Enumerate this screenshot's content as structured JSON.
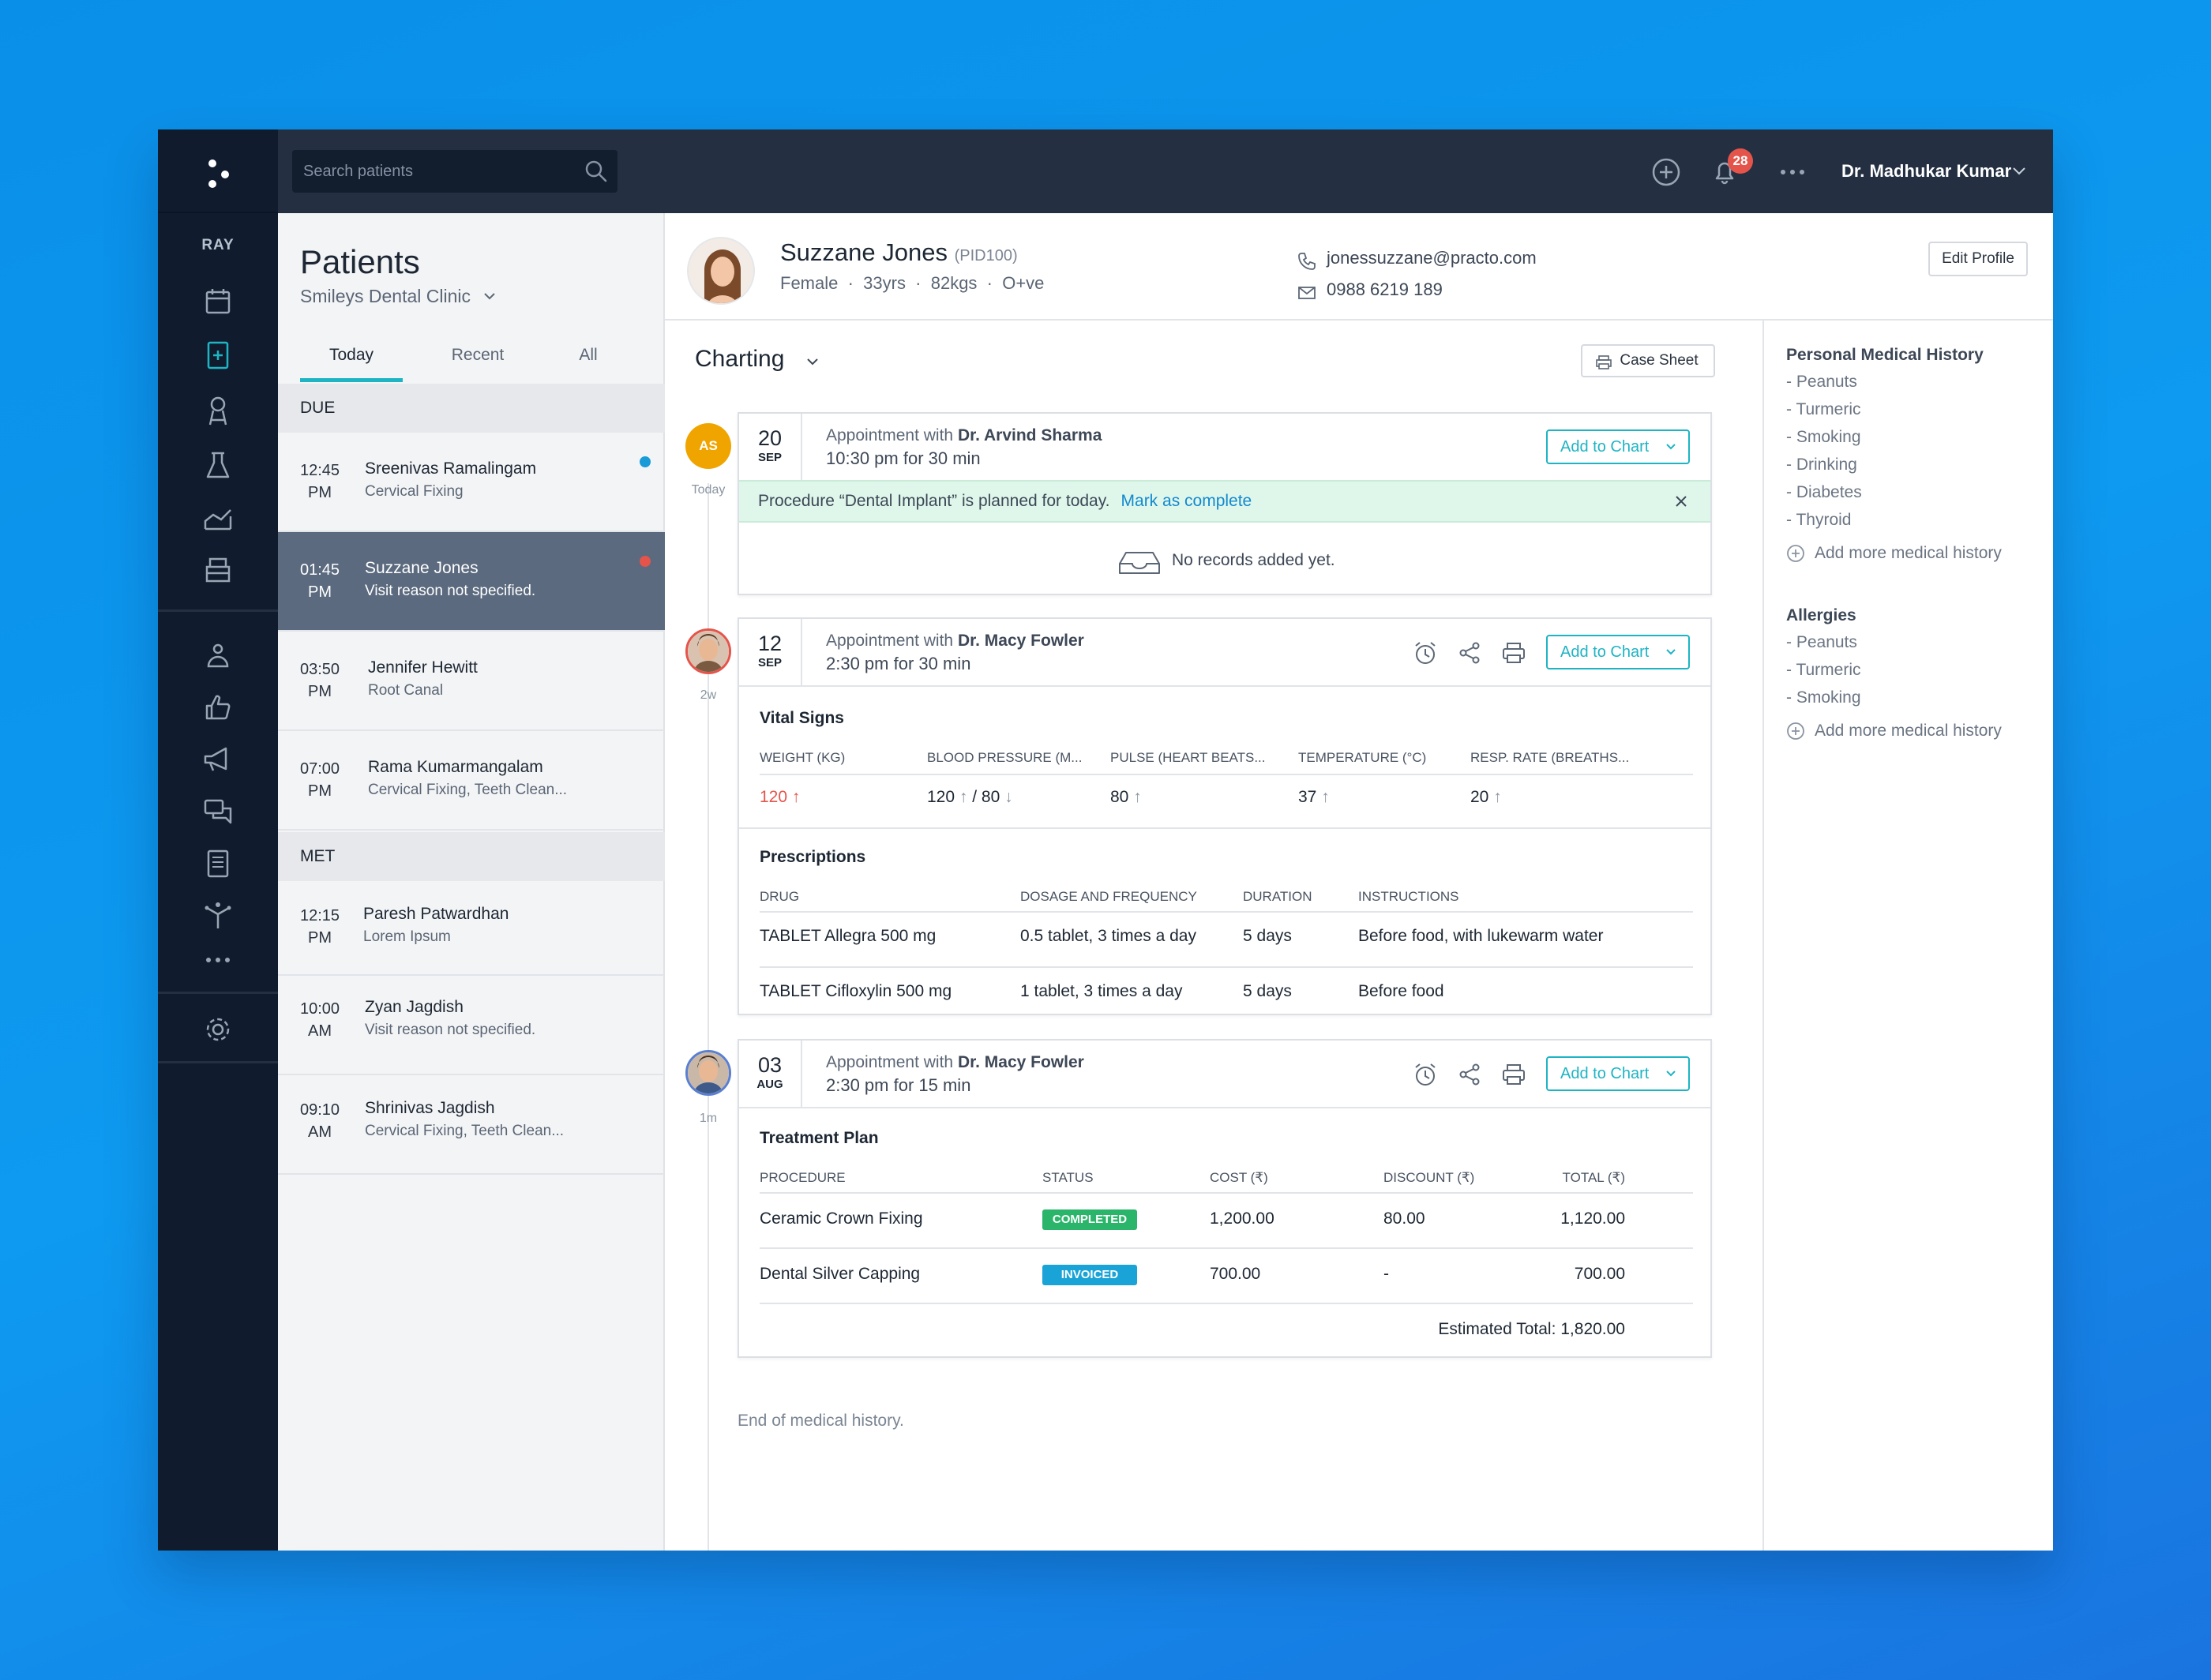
{
  "app": {
    "name": "RAY"
  },
  "search": {
    "placeholder": "Search patients"
  },
  "topbar": {
    "notification_count": "28",
    "user_name": "Dr. Madhukar Kumar"
  },
  "patients_panel": {
    "title": "Patients",
    "clinic": "Smileys Dental Clinic",
    "tabs": [
      {
        "label": "Today"
      },
      {
        "label": "Recent"
      },
      {
        "label": "All"
      }
    ],
    "due_label": "DUE",
    "met_label": "MET",
    "due": [
      {
        "time": "12:45",
        "ampm": "PM",
        "name": "Sreenivas Ramalingam",
        "reason": "Cervical Fixing"
      },
      {
        "time": "01:45",
        "ampm": "PM",
        "name": "Suzzane Jones",
        "reason": "Visit reason not specified."
      },
      {
        "time": "03:50",
        "ampm": "PM",
        "name": "Jennifer Hewitt",
        "reason": "Root Canal"
      },
      {
        "time": "07:00",
        "ampm": "PM",
        "name": "Rama Kumarmangalam",
        "reason": "Cervical Fixing, Teeth Clean..."
      }
    ],
    "met": [
      {
        "time": "12:15",
        "ampm": "PM",
        "name": "Paresh Patwardhan",
        "reason": "Lorem Ipsum"
      },
      {
        "time": "10:00",
        "ampm": "AM",
        "name": "Zyan Jagdish",
        "reason": "Visit reason not specified."
      },
      {
        "time": "09:10",
        "ampm": "AM",
        "name": "Shrinivas Jagdish",
        "reason": "Cervical Fixing, Teeth Clean..."
      }
    ]
  },
  "patient": {
    "name": "Suzzane Jones",
    "pid": "(PID100)",
    "gender": "Female",
    "age": "33yrs",
    "weight": "82kgs",
    "blood": "O+ve",
    "email": "jonessuzzane@practo.com",
    "phone": "0988 6219 189",
    "edit_label": "Edit Profile"
  },
  "charting": {
    "title": "Charting",
    "case_sheet_label": "Case Sheet",
    "add_to_chart_label": "Add to Chart",
    "appointment_prefix": "Appointment with",
    "end_label": "End of medical history.",
    "timeline": [
      {
        "initials": "AS",
        "label": "Today"
      },
      {
        "label": "2w"
      },
      {
        "label": "1m"
      }
    ],
    "appt1": {
      "day": "20",
      "month": "SEP",
      "doctor": "Dr. Arvind Sharma",
      "when": "10:30 pm for 30 min",
      "alert": "Procedure “Dental Implant” is planned for today.",
      "alert_link": "Mark as complete",
      "empty": "No records added yet."
    },
    "appt2": {
      "day": "12",
      "month": "SEP",
      "doctor": "Dr. Macy Fowler",
      "when": "2:30 pm for 30 min",
      "vitals_title": "Vital Signs",
      "vitals_headers": [
        "WEIGHT (KG)",
        "BLOOD PRESSURE (M...",
        "PULSE (HEART BEATS...",
        "TEMPERATURE (°C)",
        "RESP. RATE (BREATHS..."
      ],
      "vitals_values": {
        "weight": "120",
        "bp_sys": "120",
        "bp_sep": "/",
        "bp_dia": "80",
        "pulse": "80",
        "temp": "37",
        "resp": "20"
      },
      "rx_title": "Prescriptions",
      "rx_headers": [
        "DRUG",
        "DOSAGE AND FREQUENCY",
        "DURATION",
        "INSTRUCTIONS"
      ],
      "rx_rows": [
        {
          "drug": "TABLET Allegra 500 mg",
          "dosage": "0.5 tablet, 3 times a day",
          "duration": "5 days",
          "instructions": "Before food, with lukewarm water"
        },
        {
          "drug": "TABLET Cifloxylin 500 mg",
          "dosage": "1 tablet, 3 times a day",
          "duration": "5 days",
          "instructions": "Before food"
        }
      ]
    },
    "appt3": {
      "day": "03",
      "month": "AUG",
      "doctor": "Dr. Macy Fowler",
      "when": "2:30 pm for 15 min",
      "plan_title": "Treatment Plan",
      "plan_headers": [
        "PROCEDURE",
        "STATUS",
        "COST (₹)",
        "DISCOUNT (₹)",
        "TOTAL (₹)"
      ],
      "plan_rows": [
        {
          "procedure": "Ceramic Crown Fixing",
          "status": "COMPLETED",
          "status_color": "#2bb56a",
          "cost": "1,200.00",
          "discount": "80.00",
          "total": "1,120.00"
        },
        {
          "procedure": "Dental Silver Capping",
          "status": "INVOICED",
          "status_color": "#1aa3d6",
          "cost": "700.00",
          "discount": "-",
          "total": "700.00"
        }
      ],
      "estimated_total": "Estimated Total: 1,820.00"
    }
  },
  "sidebar": {
    "history_title": "Personal Medical History",
    "history_items": [
      "- Peanuts",
      "- Turmeric",
      "- Smoking",
      "- Drinking",
      "- Diabetes",
      "- Thyroid"
    ],
    "add_history": "Add more medical history",
    "allergies_title": "Allergies",
    "allergy_items": [
      "- Peanuts",
      "- Turmeric",
      "- Smoking"
    ],
    "add_allergy": "Add more medical history"
  },
  "colors": {
    "accent": "#1eb4c4",
    "alert_red": "#e5544b",
    "nav_bg": "#101c2e",
    "topbar_bg": "#243042",
    "due_dot_blue": "#1a9ad6"
  }
}
